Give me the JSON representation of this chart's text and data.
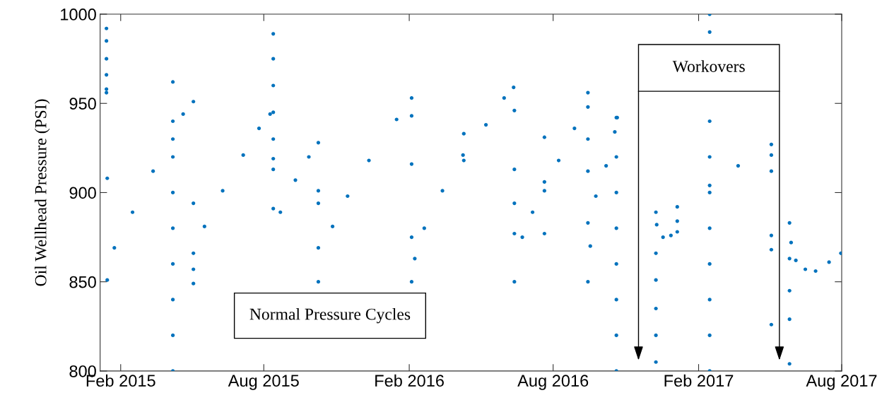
{
  "chart_data": {
    "type": "scatter",
    "ylabel": "Oil Wellhead Pressure (PSI)",
    "xlim": [
      "2015-01-06",
      "2017-08-01"
    ],
    "ylim": [
      800,
      1000
    ],
    "yticks": [
      800,
      850,
      900,
      950,
      1000
    ],
    "xticks": [
      {
        "value": "2015-02-01",
        "label": "Feb 2015"
      },
      {
        "value": "2015-08-01",
        "label": "Aug 2015"
      },
      {
        "value": "2016-02-01",
        "label": "Feb 2016"
      },
      {
        "value": "2016-08-01",
        "label": "Aug 2016"
      },
      {
        "value": "2017-02-01",
        "label": "Feb 2017"
      },
      {
        "value": "2017-08-01",
        "label": "Aug 2017"
      }
    ],
    "marker": "circle",
    "grid": false,
    "legend": false,
    "annotations": [
      "Normal Pressure Cycles",
      "Workovers"
    ],
    "series": [
      {
        "color": "#0072bd",
        "x": [
          "2015-01-14",
          "2015-01-14",
          "2015-01-14",
          "2015-01-14",
          "2015-01-14",
          "2015-01-14",
          "2015-01-15",
          "2015-01-15",
          "2015-01-24",
          "2015-02-16",
          "2015-03-14",
          "2015-04-08",
          "2015-04-21",
          "2015-05-04",
          "2015-04-08",
          "2015-04-08",
          "2015-04-08",
          "2015-04-08",
          "2015-04-08",
          "2015-04-08",
          "2015-04-08",
          "2015-04-08",
          "2015-04-08",
          "2015-05-04",
          "2015-05-04",
          "2015-05-04",
          "2015-05-04",
          "2015-05-18",
          "2015-06-10",
          "2015-07-06",
          "2015-07-26",
          "2015-08-09",
          "2015-08-13",
          "2015-08-13",
          "2015-08-13",
          "2015-08-13",
          "2015-08-13",
          "2015-08-13",
          "2015-08-13",
          "2015-08-13",
          "2015-08-22",
          "2015-09-10",
          "2015-09-27",
          "2015-10-09",
          "2015-10-09",
          "2015-10-09",
          "2015-10-09",
          "2015-10-09",
          "2015-10-27",
          "2015-11-15",
          "2015-12-12",
          "2016-01-16",
          "2016-02-04",
          "2016-02-04",
          "2016-02-04",
          "2016-02-04",
          "2016-02-04",
          "2016-02-08",
          "2016-02-20",
          "2016-03-14",
          "2016-04-09",
          "2016-04-10",
          "2016-04-10",
          "2016-05-08",
          "2016-05-31",
          "2016-06-12",
          "2016-06-13",
          "2016-06-13",
          "2016-06-13",
          "2016-06-13",
          "2016-06-13",
          "2016-06-23",
          "2016-07-06",
          "2016-07-21",
          "2016-07-21",
          "2016-07-21",
          "2016-07-21",
          "2016-08-08",
          "2016-08-28",
          "2016-09-14",
          "2016-09-14",
          "2016-09-14",
          "2016-09-14",
          "2016-09-14",
          "2016-09-14",
          "2016-09-17",
          "2016-09-24",
          "2016-10-07",
          "2016-10-18",
          "2016-10-21",
          "2016-10-20",
          "2016-10-20",
          "2016-10-20",
          "2016-10-20",
          "2016-10-20",
          "2016-10-20",
          "2016-10-20",
          "2016-10-20",
          "2016-12-09",
          "2016-12-10",
          "2016-12-18",
          "2016-12-28",
          "2017-01-05",
          "2016-12-09",
          "2016-12-09",
          "2016-12-09",
          "2016-12-09",
          "2016-12-09",
          "2017-01-05",
          "2017-01-05",
          "2017-02-15",
          "2017-03-23",
          "2017-05-04",
          "2017-05-04",
          "2017-05-04",
          "2017-05-04",
          "2017-05-04",
          "2017-05-04",
          "2017-02-15",
          "2017-02-15",
          "2017-02-15",
          "2017-02-15",
          "2017-02-15",
          "2017-02-15",
          "2017-02-15",
          "2017-02-15",
          "2017-02-15",
          "2017-02-15",
          "2017-05-27",
          "2017-05-29",
          "2017-06-04",
          "2017-06-16",
          "2017-06-29",
          "2017-07-16",
          "2017-07-31",
          "2017-05-27",
          "2017-05-27",
          "2017-05-27",
          "2017-05-27"
        ],
        "values": [
          992,
          985,
          975,
          966,
          958,
          956,
          908,
          851,
          869,
          889,
          912,
          930,
          944,
          951,
          800,
          820,
          840,
          860,
          880,
          900,
          920,
          940,
          962,
          849,
          857,
          866,
          894,
          881,
          901,
          921,
          936,
          944,
          989,
          975,
          960,
          945,
          930,
          919,
          913,
          891,
          889,
          907,
          920,
          928,
          901,
          894,
          850,
          869,
          881,
          898,
          918,
          941,
          953,
          943,
          916,
          875,
          850,
          863,
          880,
          901,
          921,
          933,
          918,
          938,
          953,
          959,
          946,
          850,
          877,
          894,
          913,
          875,
          889,
          901,
          931,
          906,
          877,
          918,
          936,
          956,
          930,
          912,
          883,
          948,
          850,
          870,
          898,
          915,
          934,
          942,
          800,
          820,
          840,
          860,
          880,
          900,
          920,
          942,
          889,
          882,
          875,
          876,
          878,
          866,
          851,
          835,
          820,
          805,
          884,
          892,
          904,
          915,
          927,
          921,
          912,
          876,
          868,
          826,
          800,
          820,
          840,
          860,
          880,
          900,
          920,
          940,
          990,
          1000,
          883,
          872,
          862,
          857,
          856,
          861,
          866,
          863,
          845,
          829,
          804
        ]
      }
    ]
  }
}
